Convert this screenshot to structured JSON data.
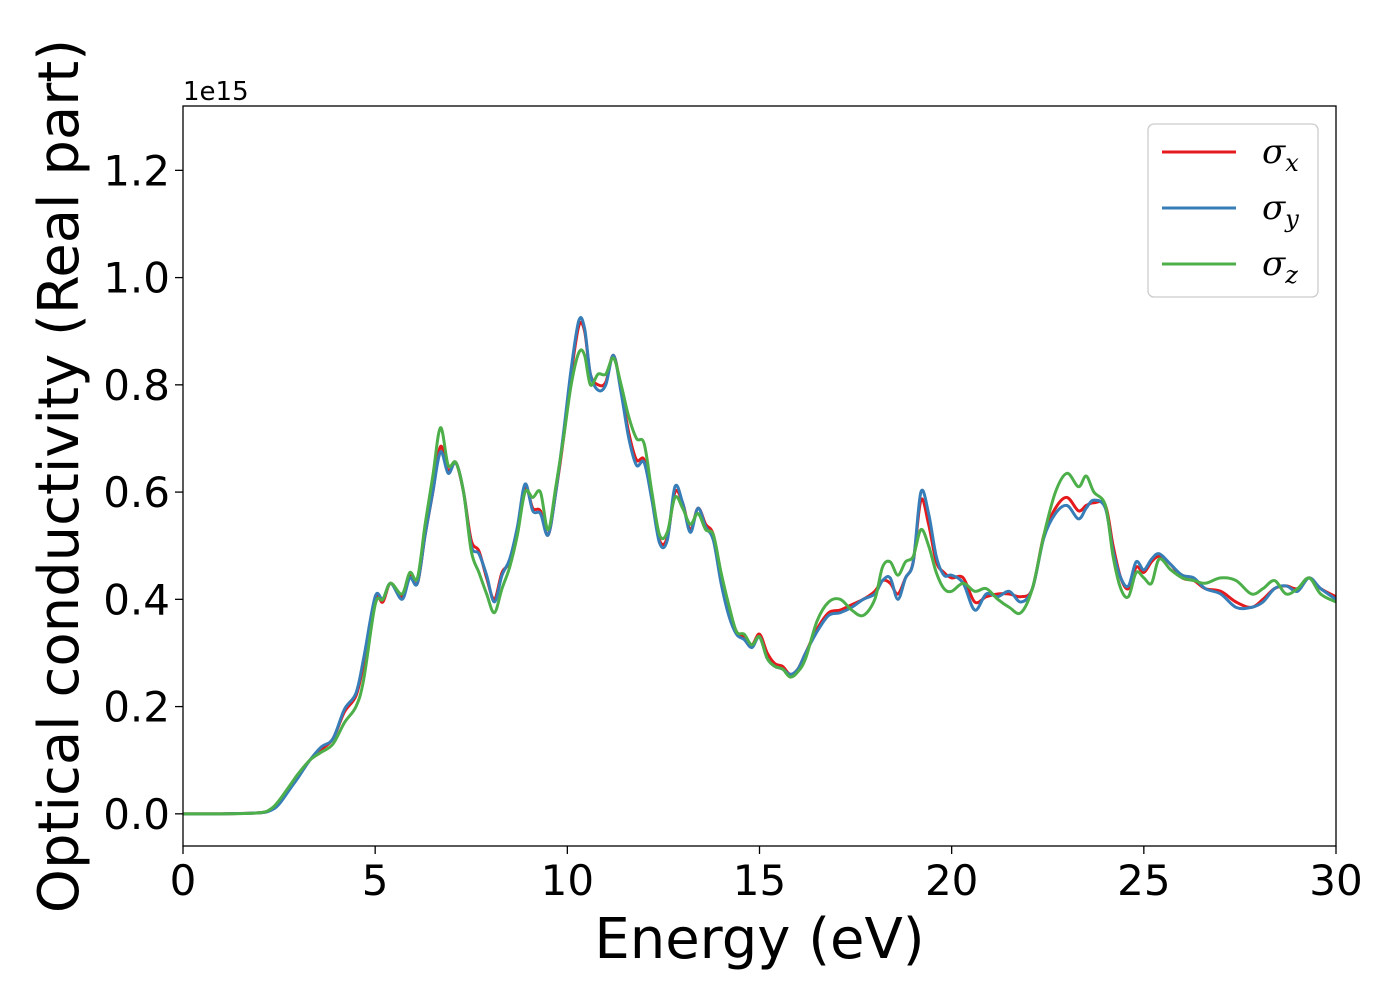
{
  "chart_data": {
    "type": "line",
    "xlabel": "Energy (eV)",
    "ylabel": "Optical conductivity (Real part)",
    "y_offset_label": "1e15",
    "y_scale": 1000000000000000.0,
    "xlim": [
      0,
      30
    ],
    "ylim": [
      -0.06,
      1.32
    ],
    "x_ticks": [
      0,
      5,
      10,
      15,
      20,
      25,
      30
    ],
    "x_tick_labels": [
      "0",
      "5",
      "10",
      "15",
      "20",
      "25",
      "30"
    ],
    "y_ticks": [
      0.0,
      0.2,
      0.4,
      0.6,
      0.8,
      1.0,
      1.2
    ],
    "y_tick_labels": [
      "0.0",
      "0.2",
      "0.4",
      "0.6",
      "0.8",
      "1.0",
      "1.2"
    ],
    "grid": false,
    "legend_position": "top-right",
    "series": [
      {
        "name": "σx",
        "legend_symbol": "σ",
        "legend_subscript": "x",
        "color": "#e41a1c",
        "x": [
          0,
          1,
          2,
          2.3,
          2.5,
          2.8,
          3,
          3.3,
          3.6,
          3.9,
          4.2,
          4.5,
          4.7,
          5,
          5.2,
          5.4,
          5.7,
          5.9,
          6.1,
          6.3,
          6.5,
          6.7,
          6.9,
          7.1,
          7.3,
          7.5,
          7.7,
          7.9,
          8.1,
          8.3,
          8.5,
          8.7,
          8.9,
          9.1,
          9.3,
          9.5,
          9.7,
          9.9,
          10.1,
          10.3,
          10.45,
          10.6,
          10.8,
          11,
          11.2,
          11.4,
          11.6,
          11.8,
          12,
          12.2,
          12.4,
          12.6,
          12.8,
          13,
          13.2,
          13.4,
          13.6,
          13.8,
          14,
          14.2,
          14.4,
          14.6,
          14.8,
          15,
          15.2,
          15.4,
          15.6,
          15.8,
          16,
          16.2,
          16.5,
          16.8,
          17.1,
          17.4,
          17.7,
          18,
          18.2,
          18.4,
          18.6,
          18.8,
          19,
          19.2,
          19.4,
          19.6,
          19.8,
          20,
          20.3,
          20.6,
          20.9,
          21.2,
          21.5,
          21.8,
          22.1,
          22.4,
          22.7,
          23,
          23.3,
          23.5,
          23.7,
          24,
          24.2,
          24.4,
          24.6,
          24.8,
          25,
          25.2,
          25.4,
          25.7,
          26,
          26.3,
          26.6,
          27,
          27.4,
          27.8,
          28.1,
          28.4,
          28.7,
          29,
          29.3,
          29.6,
          30
        ],
        "y": [
          0,
          0,
          0.002,
          0.008,
          0.02,
          0.05,
          0.07,
          0.1,
          0.12,
          0.14,
          0.19,
          0.22,
          0.28,
          0.4,
          0.395,
          0.43,
          0.405,
          0.445,
          0.43,
          0.52,
          0.6,
          0.685,
          0.64,
          0.655,
          0.6,
          0.51,
          0.49,
          0.44,
          0.4,
          0.45,
          0.47,
          0.53,
          0.61,
          0.57,
          0.565,
          0.52,
          0.6,
          0.7,
          0.82,
          0.91,
          0.9,
          0.82,
          0.8,
          0.805,
          0.855,
          0.79,
          0.71,
          0.66,
          0.66,
          0.59,
          0.51,
          0.515,
          0.6,
          0.58,
          0.53,
          0.57,
          0.54,
          0.52,
          0.44,
          0.38,
          0.34,
          0.33,
          0.315,
          0.335,
          0.3,
          0.28,
          0.275,
          0.26,
          0.27,
          0.3,
          0.345,
          0.375,
          0.38,
          0.39,
          0.4,
          0.415,
          0.435,
          0.43,
          0.41,
          0.44,
          0.47,
          0.585,
          0.54,
          0.47,
          0.45,
          0.44,
          0.44,
          0.395,
          0.405,
          0.41,
          0.41,
          0.405,
          0.42,
          0.52,
          0.57,
          0.59,
          0.565,
          0.575,
          0.58,
          0.575,
          0.5,
          0.44,
          0.42,
          0.46,
          0.45,
          0.47,
          0.48,
          0.465,
          0.44,
          0.435,
          0.42,
          0.415,
          0.395,
          0.385,
          0.4,
          0.42,
          0.425,
          0.42,
          0.44,
          0.42,
          0.405
        ]
      },
      {
        "name": "σy",
        "legend_symbol": "σ",
        "legend_subscript": "y",
        "color": "#377eb8",
        "x": [
          0,
          1,
          2,
          2.3,
          2.5,
          2.8,
          3,
          3.3,
          3.6,
          3.9,
          4.2,
          4.5,
          4.7,
          5,
          5.2,
          5.4,
          5.7,
          5.9,
          6.1,
          6.3,
          6.5,
          6.7,
          6.9,
          7.1,
          7.3,
          7.5,
          7.7,
          7.9,
          8.1,
          8.3,
          8.5,
          8.7,
          8.9,
          9.1,
          9.3,
          9.5,
          9.7,
          9.9,
          10.1,
          10.3,
          10.45,
          10.6,
          10.8,
          11,
          11.2,
          11.4,
          11.6,
          11.8,
          12,
          12.2,
          12.4,
          12.6,
          12.8,
          13,
          13.2,
          13.4,
          13.6,
          13.8,
          14,
          14.2,
          14.4,
          14.6,
          14.8,
          15,
          15.2,
          15.4,
          15.6,
          15.8,
          16,
          16.2,
          16.5,
          16.8,
          17.1,
          17.4,
          17.7,
          18,
          18.2,
          18.4,
          18.6,
          18.8,
          19,
          19.2,
          19.4,
          19.6,
          19.8,
          20,
          20.3,
          20.6,
          20.9,
          21.2,
          21.5,
          21.8,
          22.1,
          22.4,
          22.7,
          23,
          23.3,
          23.5,
          23.7,
          24,
          24.2,
          24.4,
          24.6,
          24.8,
          25,
          25.2,
          25.4,
          25.7,
          26,
          26.3,
          26.6,
          27,
          27.4,
          27.8,
          28.1,
          28.4,
          28.7,
          29,
          29.3,
          29.6,
          30
        ],
        "y": [
          0,
          0,
          0.002,
          0.007,
          0.018,
          0.048,
          0.068,
          0.1,
          0.125,
          0.14,
          0.195,
          0.225,
          0.29,
          0.405,
          0.4,
          0.43,
          0.4,
          0.44,
          0.43,
          0.52,
          0.6,
          0.675,
          0.635,
          0.655,
          0.6,
          0.5,
          0.485,
          0.445,
          0.395,
          0.445,
          0.475,
          0.535,
          0.615,
          0.565,
          0.56,
          0.52,
          0.6,
          0.71,
          0.83,
          0.92,
          0.905,
          0.82,
          0.79,
          0.8,
          0.855,
          0.785,
          0.7,
          0.65,
          0.655,
          0.585,
          0.505,
          0.51,
          0.61,
          0.58,
          0.525,
          0.57,
          0.535,
          0.51,
          0.43,
          0.37,
          0.335,
          0.325,
          0.31,
          0.33,
          0.29,
          0.275,
          0.27,
          0.26,
          0.27,
          0.3,
          0.34,
          0.37,
          0.375,
          0.385,
          0.4,
          0.41,
          0.435,
          0.44,
          0.4,
          0.44,
          0.47,
          0.6,
          0.56,
          0.48,
          0.445,
          0.445,
          0.43,
          0.38,
          0.41,
          0.405,
          0.415,
          0.395,
          0.42,
          0.515,
          0.56,
          0.575,
          0.55,
          0.57,
          0.585,
          0.57,
          0.49,
          0.44,
          0.425,
          0.47,
          0.455,
          0.475,
          0.485,
          0.465,
          0.445,
          0.44,
          0.42,
          0.41,
          0.385,
          0.385,
          0.395,
          0.42,
          0.425,
          0.415,
          0.44,
          0.42,
          0.4
        ]
      },
      {
        "name": "σz",
        "legend_symbol": "σ",
        "legend_subscript": "z",
        "color": "#4daf4a",
        "x": [
          0,
          1,
          2,
          2.3,
          2.5,
          2.8,
          3,
          3.3,
          3.6,
          3.9,
          4.2,
          4.5,
          4.7,
          5,
          5.2,
          5.4,
          5.7,
          5.9,
          6.1,
          6.3,
          6.5,
          6.7,
          6.9,
          7.1,
          7.3,
          7.5,
          7.7,
          7.9,
          8.1,
          8.3,
          8.5,
          8.7,
          8.9,
          9.1,
          9.3,
          9.5,
          9.7,
          9.9,
          10.1,
          10.3,
          10.45,
          10.6,
          10.8,
          11,
          11.2,
          11.4,
          11.6,
          11.8,
          12,
          12.2,
          12.4,
          12.6,
          12.8,
          13,
          13.2,
          13.4,
          13.6,
          13.8,
          14,
          14.2,
          14.4,
          14.6,
          14.8,
          15,
          15.2,
          15.4,
          15.6,
          15.8,
          16,
          16.2,
          16.5,
          16.8,
          17.1,
          17.4,
          17.7,
          18,
          18.2,
          18.4,
          18.6,
          18.8,
          19,
          19.2,
          19.4,
          19.6,
          19.8,
          20,
          20.3,
          20.6,
          20.9,
          21.2,
          21.5,
          21.8,
          22.1,
          22.4,
          22.7,
          23,
          23.3,
          23.5,
          23.7,
          24,
          24.2,
          24.4,
          24.6,
          24.8,
          25,
          25.2,
          25.4,
          25.7,
          26,
          26.3,
          26.6,
          27,
          27.4,
          27.8,
          28.1,
          28.4,
          28.7,
          29,
          29.3,
          29.6,
          30
        ],
        "y": [
          0,
          0,
          0.002,
          0.01,
          0.025,
          0.055,
          0.075,
          0.1,
          0.115,
          0.13,
          0.17,
          0.2,
          0.25,
          0.39,
          0.4,
          0.43,
          0.41,
          0.45,
          0.44,
          0.54,
          0.63,
          0.72,
          0.65,
          0.655,
          0.6,
          0.49,
          0.45,
          0.41,
          0.375,
          0.42,
          0.46,
          0.52,
          0.6,
          0.59,
          0.6,
          0.53,
          0.61,
          0.7,
          0.8,
          0.86,
          0.855,
          0.8,
          0.82,
          0.82,
          0.85,
          0.8,
          0.74,
          0.7,
          0.69,
          0.6,
          0.52,
          0.525,
          0.59,
          0.57,
          0.54,
          0.56,
          0.53,
          0.52,
          0.45,
          0.39,
          0.34,
          0.335,
          0.315,
          0.33,
          0.29,
          0.275,
          0.27,
          0.255,
          0.265,
          0.29,
          0.36,
          0.395,
          0.4,
          0.38,
          0.37,
          0.4,
          0.46,
          0.47,
          0.445,
          0.47,
          0.48,
          0.53,
          0.5,
          0.45,
          0.42,
          0.415,
          0.43,
          0.415,
          0.42,
          0.4,
          0.385,
          0.375,
          0.42,
          0.52,
          0.6,
          0.635,
          0.61,
          0.63,
          0.6,
          0.575,
          0.48,
          0.42,
          0.405,
          0.45,
          0.44,
          0.43,
          0.475,
          0.455,
          0.44,
          0.435,
          0.43,
          0.44,
          0.435,
          0.41,
          0.42,
          0.435,
          0.41,
          0.42,
          0.44,
          0.41,
          0.395
        ]
      }
    ]
  }
}
